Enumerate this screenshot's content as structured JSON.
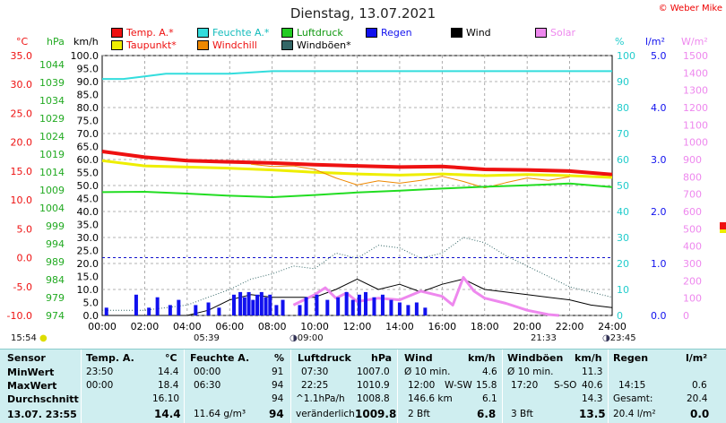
{
  "header": {
    "title": "Dienstag, 13.07.2021",
    "copyright": "© Weber Mike"
  },
  "legend": {
    "row1": [
      {
        "label": "Temp. A.*",
        "color": "#ee1111"
      },
      {
        "label": "Feuchte A.*",
        "color": "#33dddd"
      },
      {
        "label": "Luftdruck",
        "color": "#22cc22"
      },
      {
        "label": "Regen",
        "color": "#1111ee"
      },
      {
        "label": "Wind",
        "color": "#000000"
      },
      {
        "label": "Solar",
        "color": "#ee88ee"
      }
    ],
    "row2": [
      {
        "label": "Taupunkt*",
        "color": "#eeee00"
      },
      {
        "label": "Windchill",
        "color": "#ee8800"
      },
      {
        "label": "Windböen*",
        "color": "#336666"
      }
    ]
  },
  "axis_units": {
    "temp": "°C",
    "pressure": "hPa",
    "wind": "km/h",
    "humidity": "%",
    "rain": "l/m²",
    "solar": "W/m²"
  },
  "sun": {
    "moonset": "15:54",
    "sunrise": "05:39",
    "moonrise": "09:00",
    "sunset": "21:33",
    "moon2": "23:45"
  },
  "chart_data": {
    "type": "line",
    "x_unit": "time (h)",
    "xlim": [
      0,
      24
    ],
    "x_ticks": [
      "00:00",
      "02:00",
      "04:00",
      "06:00",
      "08:00",
      "10:00",
      "12:00",
      "14:00",
      "16:00",
      "18:00",
      "20:00",
      "22:00",
      "24:00"
    ],
    "y_axes": {
      "temp_c": {
        "ylim": [
          -10,
          35
        ],
        "ticks": [
          "35.0",
          "30.0",
          "25.0",
          "20.0",
          "15.0",
          "10.0",
          "5.0",
          "0.0",
          "-5.0",
          "-10.0"
        ],
        "color": "#ee1111"
      },
      "pressure_hpa": {
        "ylim": [
          974,
          1046.5
        ],
        "ticks": [
          "1044",
          "1039",
          "1034",
          "1029",
          "1024",
          "1019",
          "1014",
          "1009",
          "1004",
          "999",
          "994",
          "989",
          "984",
          "979",
          "974"
        ],
        "color": "#22aa22"
      },
      "wind_kmh": {
        "ylim": [
          0,
          100
        ],
        "ticks": [
          "100.0",
          "95.0",
          "90.0",
          "85.0",
          "80.0",
          "75.0",
          "70.0",
          "65.0",
          "60.0",
          "55.0",
          "50.0",
          "45.0",
          "40.0",
          "35.0",
          "30.0",
          "25.0",
          "20.0",
          "15.0",
          "10.0",
          "5.0",
          "0.0"
        ],
        "color": "#000000"
      },
      "humidity_pct": {
        "ylim": [
          0,
          100
        ],
        "ticks": [
          "100",
          "90",
          "80",
          "70",
          "60",
          "50",
          "40",
          "30",
          "20",
          "10",
          "0"
        ],
        "color": "#22cccc"
      },
      "rain_lm2": {
        "ylim": [
          0,
          5
        ],
        "ticks": [
          "5.0",
          "4.0",
          "3.0",
          "2.0",
          "1.0",
          "0.0"
        ],
        "color": "#1111ee"
      },
      "solar_wm2": {
        "ylim": [
          0,
          1500
        ],
        "ticks": [
          "1500",
          "1400",
          "1300",
          "1200",
          "1100",
          "1000",
          "900",
          "800",
          "700",
          "600",
          "500",
          "400",
          "300",
          "200",
          "100",
          "0"
        ],
        "color": "#ee88ee"
      }
    },
    "series": [
      {
        "name": "Temp. A.*",
        "axis": "temp_c",
        "color": "#ee1111",
        "width": 4,
        "x": [
          0,
          2,
          4,
          6,
          8,
          10,
          12,
          14,
          16,
          18,
          20,
          22,
          24
        ],
        "y": [
          18.4,
          17.4,
          16.8,
          16.6,
          16.4,
          16.1,
          15.9,
          15.7,
          15.8,
          15.3,
          15.2,
          15.0,
          14.4
        ]
      },
      {
        "name": "Taupunkt*",
        "axis": "temp_c",
        "color": "#eeee00",
        "width": 3,
        "x": [
          0,
          2,
          4,
          6,
          8,
          10,
          12,
          14,
          16,
          18,
          20,
          22,
          24
        ],
        "y": [
          16.8,
          15.9,
          15.7,
          15.5,
          15.2,
          14.8,
          14.5,
          14.3,
          14.5,
          14.2,
          14.4,
          14.2,
          13.9
        ]
      },
      {
        "name": "Windchill",
        "axis": "temp_c",
        "color": "#ee8800",
        "width": 1,
        "x": [
          7,
          8,
          9,
          10,
          11,
          12,
          13,
          14,
          15,
          16,
          17,
          18,
          19,
          20,
          21,
          22
        ],
        "y": [
          16.2,
          15.8,
          15.9,
          15.3,
          13.8,
          12.6,
          13.3,
          12.9,
          13.4,
          14.1,
          13.2,
          12.1,
          13.0,
          13.8,
          13.4,
          14.0
        ]
      },
      {
        "name": "Feuchte A.*",
        "axis": "humidity_pct",
        "color": "#33dddd",
        "width": 2,
        "x": [
          0,
          1,
          2,
          3,
          4,
          6,
          8,
          10,
          12,
          14,
          16,
          18,
          20,
          22,
          24
        ],
        "y": [
          91,
          91,
          92,
          93,
          93,
          93,
          94,
          94,
          94,
          94,
          94,
          94,
          94,
          94,
          94
        ]
      },
      {
        "name": "Luftdruck",
        "axis": "pressure_hpa",
        "color": "#22dd22",
        "width": 2,
        "x": [
          0,
          2,
          4,
          6,
          8,
          10,
          12,
          14,
          16,
          18,
          20,
          22,
          24
        ],
        "y": [
          1008.4,
          1008.5,
          1008.0,
          1007.4,
          1007.0,
          1007.6,
          1008.3,
          1008.8,
          1009.4,
          1009.9,
          1010.3,
          1010.8,
          1009.8
        ]
      },
      {
        "name": "Wind",
        "axis": "wind_kmh",
        "color": "#000000",
        "width": 1,
        "x": [
          0,
          2,
          4,
          5,
          6,
          7,
          8,
          9,
          10,
          11,
          12,
          13,
          14,
          15,
          16,
          17,
          18,
          19,
          20,
          21,
          22,
          23,
          24
        ],
        "y": [
          0,
          0,
          0,
          2,
          6,
          8,
          7,
          7,
          7,
          10,
          14,
          10,
          12,
          9,
          12,
          14,
          10,
          9,
          8,
          7,
          6,
          4,
          3
        ]
      },
      {
        "name": "Windböen*",
        "axis": "wind_kmh",
        "color": "#336666",
        "width": 1,
        "dotted": true,
        "x": [
          0,
          2,
          4,
          5,
          6,
          7,
          8,
          9,
          10,
          11,
          12,
          13,
          14,
          15,
          16,
          17,
          18,
          19,
          20,
          21,
          22,
          23,
          24
        ],
        "y": [
          2,
          2,
          4,
          7,
          10,
          14,
          16,
          19,
          18,
          24,
          22,
          27,
          26,
          22,
          24,
          30,
          28,
          23,
          19,
          15,
          11,
          9,
          7
        ]
      },
      {
        "name": "Solar",
        "axis": "solar_wm2",
        "color": "#ee88ee",
        "width": 3,
        "x": [
          9.0,
          9.5,
          10,
          10.5,
          11,
          11.5,
          12,
          13,
          14,
          15,
          16,
          16.5,
          17,
          17.5,
          18,
          19,
          20,
          21,
          21.5
        ],
        "y": [
          60,
          90,
          120,
          160,
          100,
          130,
          80,
          100,
          90,
          140,
          110,
          60,
          220,
          140,
          100,
          70,
          30,
          5,
          0
        ]
      },
      {
        "name": "Regen",
        "axis": "rain_lm2",
        "color": "#1111ee",
        "type": "bar",
        "x": [
          0.2,
          1.6,
          2.2,
          2.6,
          3.2,
          3.6,
          4.4,
          5.0,
          5.5,
          6.2,
          6.5,
          6.7,
          6.9,
          7.1,
          7.3,
          7.5,
          7.7,
          7.9,
          8.2,
          8.5,
          9.3,
          9.6,
          10.1,
          10.6,
          11.1,
          11.5,
          11.8,
          12.1,
          12.4,
          12.8,
          13.2,
          13.6,
          14.0,
          14.4,
          14.8,
          15.2
        ],
        "y": [
          0.15,
          0.4,
          0.15,
          0.35,
          0.2,
          0.3,
          0.2,
          0.25,
          0.15,
          0.4,
          0.45,
          0.35,
          0.45,
          0.3,
          0.4,
          0.45,
          0.35,
          0.4,
          0.2,
          0.3,
          0.2,
          0.35,
          0.4,
          0.3,
          0.35,
          0.45,
          0.3,
          0.4,
          0.45,
          0.35,
          0.4,
          0.3,
          0.25,
          0.2,
          0.25,
          0.15
        ]
      }
    ]
  },
  "stats": {
    "sensor": {
      "header": "Sensor",
      "rows": [
        "MinWert",
        "MaxWert",
        "Durchschnitt",
        "13.07.  23:55"
      ]
    },
    "temp": {
      "header": "Temp. A.",
      "unit": "°C",
      "rows": [
        [
          "23:50",
          "14.4"
        ],
        [
          "00:00",
          "18.4"
        ],
        [
          "",
          "16.10"
        ],
        [
          "",
          "14.4"
        ]
      ]
    },
    "humidity": {
      "header": "Feuchte A.",
      "unit": "%",
      "rows": [
        [
          "00:00",
          "91"
        ],
        [
          "06:30",
          "94"
        ],
        [
          "",
          "94"
        ],
        [
          "11.64 g/m³",
          "94"
        ]
      ]
    },
    "pressure": {
      "header": "Luftdruck",
      "unit": "hPa",
      "rows": [
        [
          "07:30",
          "1007.0"
        ],
        [
          "22:25",
          "1010.9"
        ],
        [
          "^1.1hPa/h",
          "1008.8"
        ],
        [
          "veränderlich",
          "1009.8"
        ]
      ]
    },
    "wind": {
      "header": "Wind",
      "unit": "km/h",
      "rows": [
        [
          "Ø 10 min.",
          "",
          "4.6"
        ],
        [
          "12:00",
          "W-SW",
          "15.8"
        ],
        [
          "146.6 km",
          "",
          "6.1"
        ],
        [
          "2 Bft",
          "",
          "6.8"
        ]
      ]
    },
    "gusts": {
      "header": "Windböen",
      "unit": "km/h",
      "rows": [
        [
          "Ø 10 min.",
          "",
          "11.3"
        ],
        [
          "17:20",
          "S-SO",
          "40.6"
        ],
        [
          "",
          "",
          "14.3"
        ],
        [
          "3 Bft",
          "",
          "13.5"
        ]
      ]
    },
    "rain": {
      "header": "Regen",
      "unit": "l/m²",
      "rows": [
        [
          "",
          ""
        ],
        [
          "14:15",
          "0.6"
        ],
        [
          "Gesamt:",
          "20.4"
        ],
        [
          "20.4 l/m²",
          "0.0"
        ]
      ]
    }
  }
}
